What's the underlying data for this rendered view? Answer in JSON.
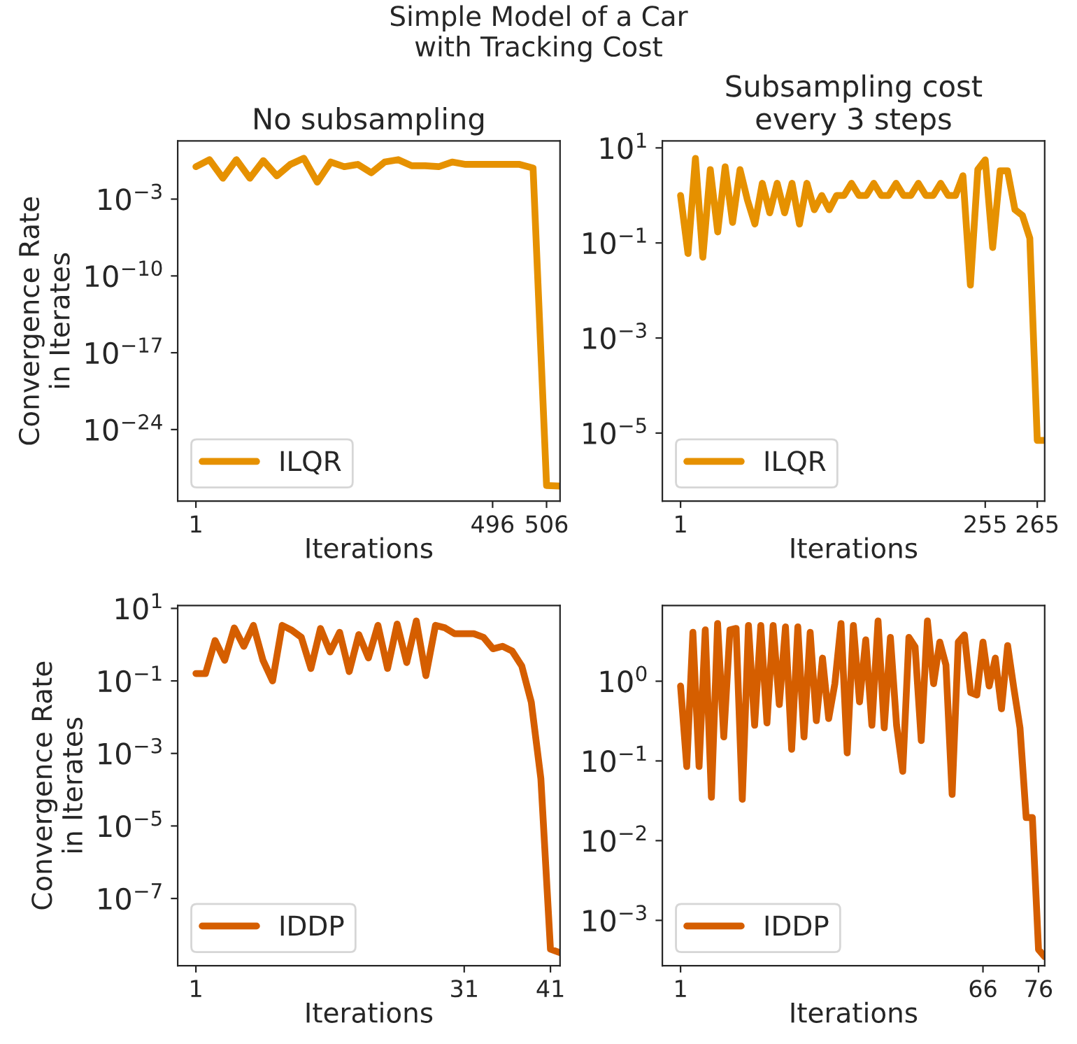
{
  "chart_data": [
    {
      "type": "line",
      "title": "Simple Model of a Car\nwith Tracking Cost",
      "subtitle": "No subsampling",
      "xlabel": "Iterations",
      "ylabel": "Convergence Rate\nin Iterates",
      "log": "y",
      "legend": "bottom left",
      "grid": false,
      "categories": [
        "1",
        null,
        null,
        null,
        null,
        null,
        null,
        null,
        null,
        null,
        null,
        null,
        null,
        null,
        null,
        null,
        null,
        null,
        null,
        null,
        null,
        null,
        "496",
        null,
        null,
        null,
        "506",
        null
      ],
      "ylim": [
        3e-31,
        200
      ],
      "yticks": [
        {
          "value": 0.001,
          "label": "10$^{−3}$"
        },
        {
          "value": 1e-10,
          "label": "10$^{−10}$"
        },
        {
          "value": 1e-17,
          "label": "10$^{−17}$"
        },
        {
          "value": 1e-24,
          "label": "10$^{−24}$"
        }
      ],
      "series": [
        {
          "name": "ILQR",
          "color": "#e69100",
          "values": [
            0.9,
            3.9,
            0.08,
            3.9,
            0.08,
            3.2,
            0.13,
            1.45,
            5.3,
            0.035,
            2.4,
            0.9,
            1.45,
            0.25,
            2.4,
            3.9,
            1.1,
            1.1,
            0.9,
            2.4,
            1.45,
            1.45,
            1.45,
            1.45,
            1.45,
            0.68,
            8e-30,
            7e-30
          ]
        }
      ]
    },
    {
      "type": "line",
      "subtitle": "Subsampling cost\nevery 3 steps",
      "xlabel": "Iterations",
      "log": "y",
      "legend": "bottom left",
      "grid": false,
      "categories": [
        "1",
        null,
        null,
        null,
        null,
        null,
        null,
        null,
        null,
        null,
        null,
        null,
        null,
        null,
        null,
        null,
        null,
        null,
        null,
        null,
        null,
        null,
        null,
        null,
        null,
        null,
        null,
        null,
        null,
        null,
        null,
        null,
        null,
        null,
        null,
        null,
        null,
        null,
        null,
        null,
        null,
        "255",
        null,
        null,
        null,
        null,
        null,
        null,
        "265",
        null
      ],
      "ylim": [
        3.7e-07,
        14
      ],
      "yticks": [
        {
          "value": 10,
          "label": "10$^{1}$"
        },
        {
          "value": 0.1,
          "label": "10$^{−1}$"
        },
        {
          "value": 0.001,
          "label": "10$^{−3}$"
        },
        {
          "value": 1e-05,
          "label": "10$^{−5}$"
        }
      ],
      "series": [
        {
          "name": "ILQR",
          "color": "#e69100",
          "values": [
            1.0,
            0.06,
            6,
            0.05,
            3.5,
            0.17,
            4,
            0.27,
            3.5,
            0.8,
            0.25,
            1.8,
            0.43,
            1.8,
            0.43,
            1.8,
            0.25,
            1.8,
            0.5,
            1,
            0.5,
            1,
            1,
            1.8,
            1,
            1,
            1.8,
            1,
            1,
            1.8,
            1,
            1,
            1.8,
            1,
            1,
            1.8,
            1,
            1,
            2.6,
            0.013,
            3.5,
            5.6,
            0.08,
            3.3,
            3.3,
            0.5,
            0.38,
            0.125,
            7e-06,
            7e-06
          ]
        }
      ]
    },
    {
      "type": "line",
      "xlabel": "Iterations",
      "ylabel": "Convergence Rate\nin Iterates",
      "log": "y",
      "legend": "bottom left",
      "grid": false,
      "categories": [
        "1",
        null,
        null,
        null,
        null,
        null,
        null,
        null,
        null,
        null,
        null,
        null,
        null,
        null,
        null,
        null,
        null,
        null,
        null,
        null,
        null,
        null,
        null,
        null,
        null,
        null,
        null,
        null,
        "31",
        null,
        null,
        null,
        null,
        null,
        null,
        null,
        null,
        "41",
        null
      ],
      "ylim": [
        1.4e-09,
        12
      ],
      "yticks": [
        {
          "value": 10,
          "label": "10$^{1}$"
        },
        {
          "value": 0.1,
          "label": "10$^{−1}$"
        },
        {
          "value": 0.001,
          "label": "10$^{−3}$"
        },
        {
          "value": 1e-05,
          "label": "10$^{−5}$"
        },
        {
          "value": 1e-07,
          "label": "10$^{−7}$"
        }
      ],
      "series": [
        {
          "name": "IDDP",
          "color": "#d55e00",
          "values": [
            0.16,
            0.16,
            1.3,
            0.37,
            2.9,
            0.9,
            3.4,
            0.37,
            0.1,
            3.4,
            2.5,
            1.6,
            0.22,
            2.8,
            0.63,
            2.2,
            0.18,
            1.9,
            0.43,
            3.4,
            0.22,
            3.7,
            0.32,
            4.5,
            0.14,
            3.4,
            2.9,
            2.0,
            2.0,
            2.0,
            1.6,
            0.77,
            0.9,
            0.67,
            0.26,
            0.026,
            0.0002,
            4e-09,
            3.2e-09
          ]
        }
      ]
    },
    {
      "type": "line",
      "xlabel": "Iterations",
      "log": "y",
      "legend": "bottom left",
      "grid": false,
      "categories": [
        "1",
        null,
        null,
        null,
        null,
        null,
        null,
        null,
        null,
        null,
        null,
        null,
        null,
        null,
        null,
        null,
        null,
        null,
        null,
        null,
        null,
        null,
        null,
        null,
        null,
        null,
        null,
        null,
        null,
        null,
        null,
        null,
        null,
        null,
        null,
        null,
        null,
        null,
        null,
        null,
        null,
        null,
        null,
        null,
        null,
        null,
        null,
        null,
        null,
        "66",
        null,
        null,
        null,
        null,
        null,
        null,
        null,
        null,
        "76",
        null
      ],
      "ylim": [
        0.00027,
        8.9
      ],
      "yticks": [
        {
          "value": 1,
          "label": "10$^{0}$"
        },
        {
          "value": 0.1,
          "label": "10$^{−1}$"
        },
        {
          "value": 0.01,
          "label": "10$^{−2}$"
        },
        {
          "value": 0.001,
          "label": "10$^{−3}$"
        }
      ],
      "series": [
        {
          "name": "IDDP",
          "color": "#d55e00",
          "values": [
            0.87,
            0.085,
            4.1,
            0.085,
            4.4,
            0.035,
            5.3,
            0.2,
            4.4,
            4.6,
            0.033,
            5,
            0.28,
            5,
            0.3,
            5,
            0.51,
            4.8,
            0.14,
            4.8,
            0.2,
            4.1,
            0.32,
            1.95,
            0.34,
            0.93,
            5.3,
            0.126,
            5,
            0.55,
            3.3,
            0.28,
            5.7,
            0.26,
            3.55,
            0.28,
            0.074,
            3.55,
            2.7,
            0.18,
            5.7,
            0.93,
            3.1,
            1.6,
            0.038,
            3.1,
            3.8,
            0.72,
            0.67,
            3.1,
            0.87,
            1.95,
            0.45,
            2.8,
            0.82,
            0.26,
            0.0195,
            0.0195,
            0.00043,
            0.00035
          ]
        }
      ]
    }
  ]
}
